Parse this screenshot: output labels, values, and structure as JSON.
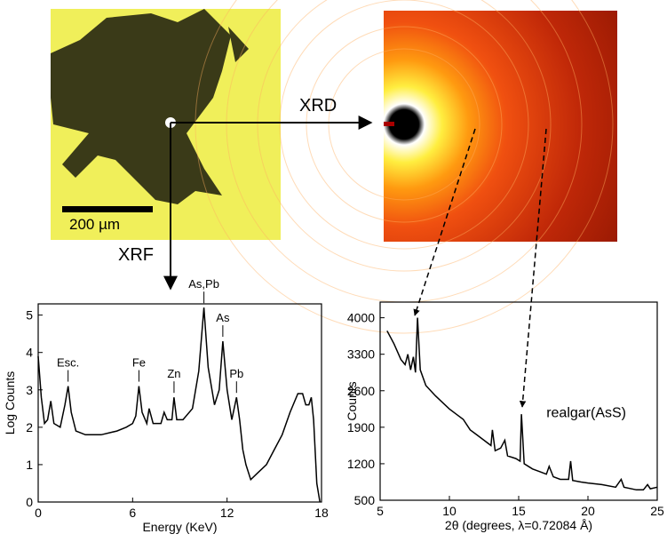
{
  "figure": {
    "scale_bar": "200 µm",
    "xrd_label": "XRD",
    "xrf_label": "XRF"
  },
  "chart_data": [
    {
      "type": "line",
      "xlabel": "Energy (KeV)",
      "ylabel": "Log Counts",
      "color": "#000000",
      "xlim": [
        0,
        18
      ],
      "ylim": [
        0,
        5.3
      ],
      "xticks": [
        0,
        6,
        12,
        18
      ],
      "yticks": [
        0,
        1,
        2,
        3,
        4,
        5
      ],
      "x": [
        0,
        0.2,
        0.4,
        0.6,
        0.8,
        1.0,
        1.4,
        1.7,
        1.9,
        2.1,
        2.4,
        3,
        4,
        5,
        5.6,
        6.0,
        6.2,
        6.4,
        6.6,
        6.9,
        7.05,
        7.3,
        7.8,
        8.0,
        8.2,
        8.5,
        8.63,
        8.8,
        9.2,
        9.8,
        10.2,
        10.53,
        10.8,
        11.2,
        11.5,
        11.73,
        12.0,
        12.3,
        12.6,
        12.8,
        13.0,
        13.2,
        13.5,
        14,
        14.5,
        15,
        15.5,
        16,
        16.5,
        16.8,
        17.0,
        17.2,
        17.35,
        17.5,
        17.7,
        17.9
      ],
      "values": [
        3.9,
        2.8,
        2.1,
        2.2,
        2.7,
        2.1,
        2.0,
        2.6,
        3.1,
        2.4,
        1.9,
        1.8,
        1.8,
        1.9,
        2.0,
        2.1,
        2.3,
        3.1,
        2.4,
        2.1,
        2.5,
        2.1,
        2.1,
        2.4,
        2.2,
        2.2,
        2.8,
        2.2,
        2.2,
        2.5,
        3.5,
        5.2,
        3.6,
        2.6,
        3.0,
        4.3,
        3.0,
        2.2,
        2.8,
        2.2,
        1.4,
        1.0,
        0.6,
        0.8,
        1.0,
        1.4,
        1.8,
        2.4,
        2.9,
        2.9,
        2.6,
        2.6,
        2.8,
        2.2,
        0.5,
        0
      ],
      "annotations": [
        {
          "text": "Esc.",
          "x": 1.9
        },
        {
          "text": "Fe",
          "x": 6.4
        },
        {
          "text": "Zn",
          "x": 8.63
        },
        {
          "text": "As,Pb",
          "x": 10.53
        },
        {
          "text": "As",
          "x": 11.73
        },
        {
          "text": "Pb",
          "x": 12.6
        }
      ]
    },
    {
      "type": "line",
      "xlabel": "2θ (degrees, λ=0.72084 Å)",
      "ylabel": "Counts",
      "color": "#000000",
      "xlim": [
        5,
        25
      ],
      "ylim": [
        500,
        4300
      ],
      "xticks": [
        5,
        10,
        15,
        20,
        25
      ],
      "yticks": [
        500,
        1200,
        1900,
        2600,
        3300,
        4000
      ],
      "x": [
        5.5,
        6,
        6.5,
        6.8,
        7.0,
        7.2,
        7.4,
        7.55,
        7.7,
        7.9,
        8.3,
        9,
        10,
        10.5,
        11,
        11.5,
        12,
        12.5,
        13,
        13.1,
        13.3,
        13.7,
        14,
        14.2,
        14.8,
        15.1,
        15.2,
        15.4,
        16,
        16.5,
        17,
        17.2,
        17.5,
        18,
        18.6,
        18.75,
        18.9,
        19.5,
        20,
        21,
        22,
        22.4,
        22.6,
        23.5,
        24,
        24.3,
        24.5,
        25
      ],
      "values": [
        3750,
        3500,
        3200,
        3100,
        3300,
        3000,
        3250,
        2950,
        4000,
        3000,
        2700,
        2500,
        2250,
        2150,
        2050,
        1850,
        1750,
        1650,
        1550,
        1850,
        1450,
        1500,
        1650,
        1350,
        1300,
        1250,
        2150,
        1200,
        1100,
        1050,
        1000,
        1150,
        950,
        900,
        900,
        1250,
        880,
        850,
        830,
        800,
        750,
        900,
        750,
        700,
        700,
        800,
        720,
        750
      ],
      "annotation": "realgar(AsS)"
    }
  ]
}
